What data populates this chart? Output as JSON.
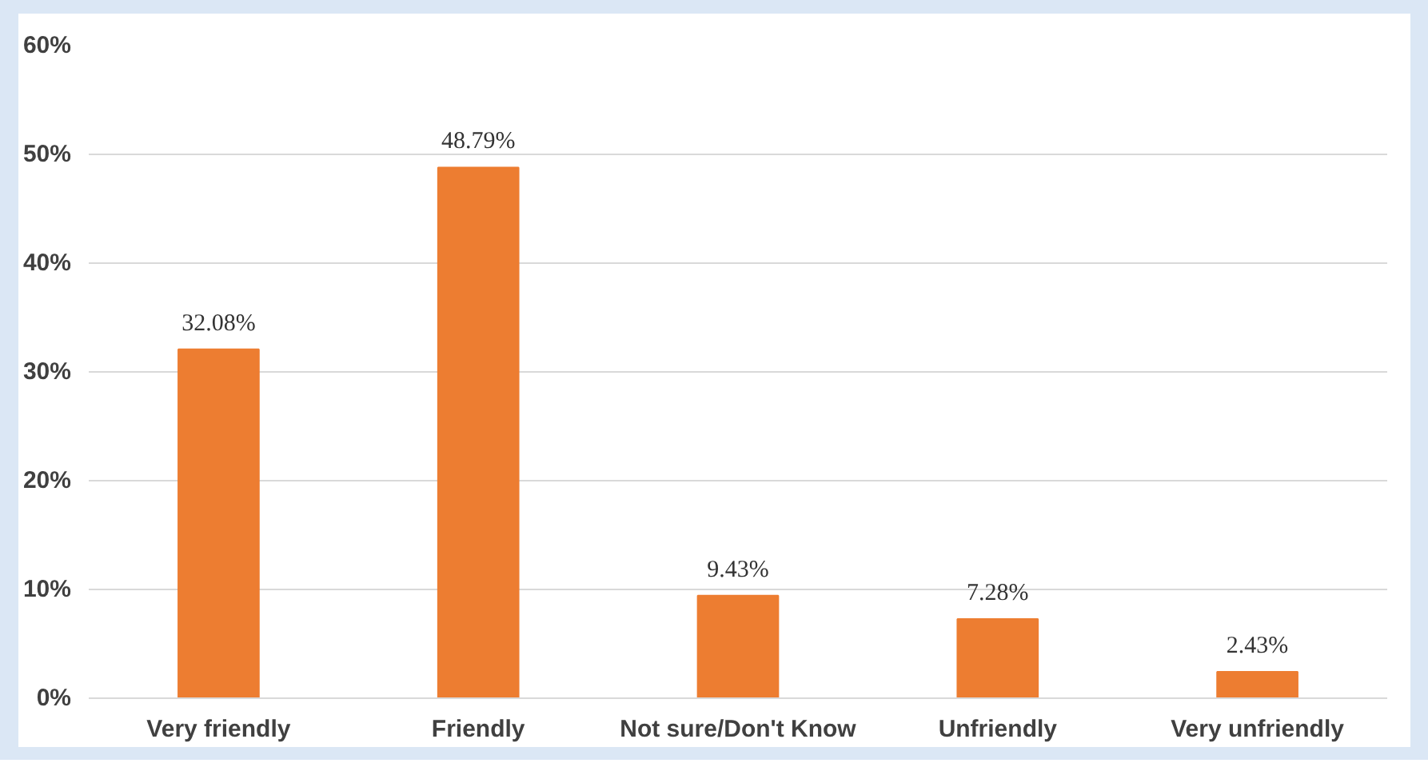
{
  "chart_data": {
    "type": "bar",
    "categories": [
      "Very friendly",
      "Friendly",
      "Not sure/Don't Know",
      "Unfriendly",
      "Very unfriendly"
    ],
    "values": [
      32.08,
      48.79,
      9.43,
      7.28,
      2.43
    ],
    "value_labels": [
      "32.08%",
      "48.79%",
      "9.43%",
      "7.28%",
      "2.43%"
    ],
    "color": "#ed7d31",
    "ylim": [
      0,
      60
    ],
    "yticks": [
      {
        "value": 0,
        "label": "0%"
      },
      {
        "value": 10,
        "label": "10%"
      },
      {
        "value": 20,
        "label": "20%"
      },
      {
        "value": 30,
        "label": "30%"
      },
      {
        "value": 40,
        "label": "40%"
      },
      {
        "value": 50,
        "label": "50%"
      },
      {
        "value": 60,
        "label": "60%"
      }
    ],
    "grid": "y"
  }
}
